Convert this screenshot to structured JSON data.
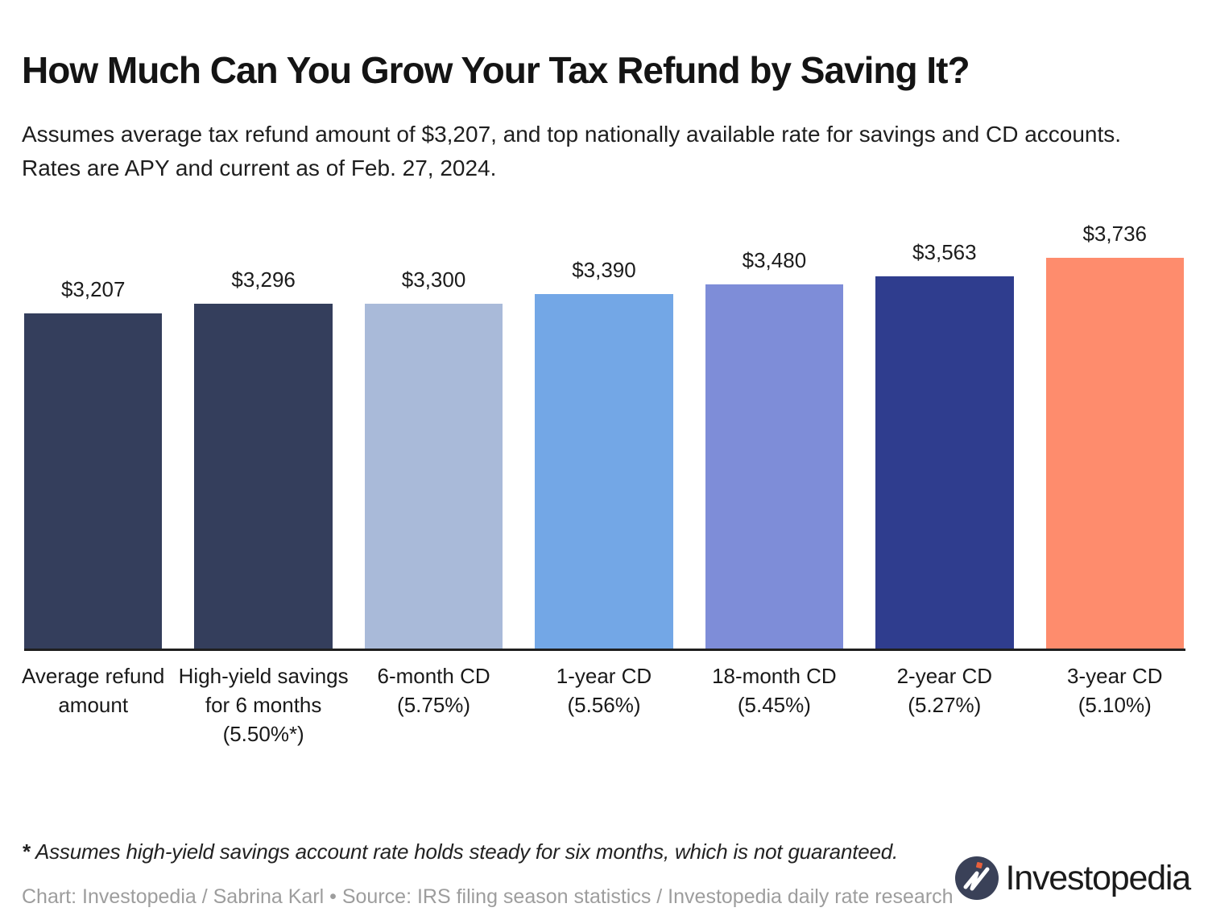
{
  "page": {
    "title": "How Much Can You Grow Your Tax Refund by Saving It?",
    "subtitle": "Assumes average tax refund amount of $3,207, and top nationally available rate for savings and CD accounts. Rates are APY and current as of Feb. 27, 2024.",
    "footnote_marker": "* ",
    "footnote": "Assumes high-yield savings account rate holds steady for six months, which is not guaranteed.",
    "credit": "Chart: Investopedia / Sabrina Karl • Source: IRS filing season statistics / Investopedia daily rate research",
    "brand": {
      "name": "Investopedia",
      "icon": "investopedia-circle-mark",
      "icon_bg_color": "#3a4158",
      "icon_mark_color": "#ffffff",
      "icon_dot_color": "#e8603c"
    }
  },
  "chart_data": {
    "type": "bar",
    "title": "How Much Can You Grow Your Tax Refund by Saving It?",
    "categories": [
      "Average refund amount",
      "High-yield savings for 6 months",
      "6-month CD",
      "1-year CD",
      "18-month CD",
      "2-year CD",
      "3-year CD"
    ],
    "rates": [
      "",
      "(5.50%*)",
      "(5.75%)",
      "(5.56%)",
      "(5.45%)",
      "(5.27%)",
      "(5.10%)"
    ],
    "values": [
      3207,
      3296,
      3300,
      3390,
      3480,
      3563,
      3736
    ],
    "value_labels": [
      "$3,207",
      "$3,296",
      "$3,300",
      "$3,390",
      "$3,480",
      "$3,563",
      "$3,736"
    ],
    "bar_colors": [
      "#343E5C",
      "#343E5C",
      "#A9BAD9",
      "#73A7E6",
      "#7E8DD8",
      "#2F3D8E",
      "#FE8C6D"
    ],
    "xlabel": "",
    "ylabel": "",
    "ylim": [
      0,
      3736
    ],
    "baseline": 0,
    "grid": false,
    "legend": false,
    "axis_line_color": "#1f1f1f"
  }
}
